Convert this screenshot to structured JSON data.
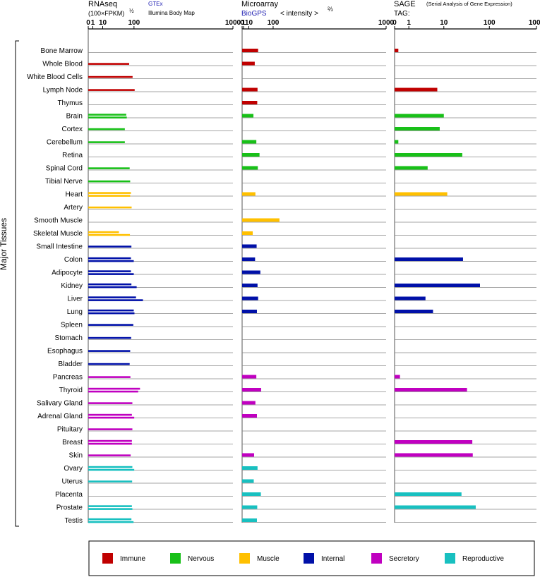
{
  "chart_data": {
    "type": "bar",
    "y_axis_label": "Major Tissues",
    "categories": [
      "Bone Marrow",
      "Whole Blood",
      "White Blood Cells",
      "Lymph Node",
      "Thymus",
      "Brain",
      "Cortex",
      "Cerebellum",
      "Retina",
      "Spinal Cord",
      "Tibial Nerve",
      "Heart",
      "Artery",
      "Smooth Muscle",
      "Skeletal Muscle",
      "Small Intestine",
      "Colon",
      "Adipocyte",
      "Kidney",
      "Liver",
      "Lung",
      "Spleen",
      "Stomach",
      "Esophagus",
      "Bladder",
      "Pancreas",
      "Thyroid",
      "Salivary Gland",
      "Adrenal Gland",
      "Pituitary",
      "Breast",
      "Skin",
      "Ovary",
      "Uterus",
      "Placenta",
      "Prostate",
      "Testis"
    ],
    "tissue_groups": [
      "Immune",
      "Immune",
      "Immune",
      "Immune",
      "Immune",
      "Nervous",
      "Nervous",
      "Nervous",
      "Nervous",
      "Nervous",
      "Nervous",
      "Muscle",
      "Muscle",
      "Muscle",
      "Muscle",
      "Internal",
      "Internal",
      "Internal",
      "Internal",
      "Internal",
      "Internal",
      "Internal",
      "Internal",
      "Internal",
      "Internal",
      "Secretory",
      "Secretory",
      "Secretory",
      "Secretory",
      "Secretory",
      "Secretory",
      "Secretory",
      "Reproductive",
      "Reproductive",
      "Reproductive",
      "Reproductive",
      "Reproductive"
    ],
    "legend": [
      {
        "name": "Immune",
        "color": "#c00000"
      },
      {
        "name": "Nervous",
        "color": "#18c018"
      },
      {
        "name": "Muscle",
        "color": "#ffc000"
      },
      {
        "name": "Internal",
        "color": "#0010a8"
      },
      {
        "name": "Secretory",
        "color": "#c000c0"
      },
      {
        "name": "Reproductive",
        "color": "#18c0c0"
      }
    ],
    "panels": [
      {
        "id": "rnaseq",
        "title": "RNAseq",
        "subtitle": "(100×FPKM)",
        "exponent": "½",
        "sources": [
          "GTEx",
          "Illumina Body Map"
        ],
        "tick_labels": [
          "0",
          "1",
          "10",
          "100",
          "1000"
        ],
        "tick_values": [
          0,
          1,
          10,
          100,
          1000
        ],
        "transform": "sqrt",
        "xlim": [
          0,
          1000
        ],
        "series_names": [
          "GTEx",
          "Illumina Body Map"
        ],
        "values": [
          [
            null,
            null
          ],
          [
            80,
            null
          ],
          [
            94,
            null
          ],
          [
            103,
            null
          ],
          [
            null,
            null
          ],
          [
            69,
            71
          ],
          [
            64,
            null
          ],
          [
            64,
            null
          ],
          [
            null,
            null
          ],
          [
            82,
            null
          ],
          [
            84,
            null
          ],
          [
            87,
            84
          ],
          [
            90,
            null
          ],
          [
            null,
            null
          ],
          [
            45,
            83
          ],
          [
            89,
            null
          ],
          [
            87,
            99
          ],
          [
            87,
            99
          ],
          [
            89,
            112
          ],
          [
            109,
            143
          ],
          [
            99,
            102
          ],
          [
            97,
            null
          ],
          [
            88,
            null
          ],
          [
            84,
            null
          ],
          [
            82,
            null
          ],
          [
            85,
            null
          ],
          [
            128,
            119
          ],
          [
            93,
            null
          ],
          [
            91,
            101
          ],
          [
            93,
            null
          ],
          [
            91,
            91
          ],
          [
            86,
            null
          ],
          [
            93,
            101
          ],
          [
            92,
            null
          ],
          [
            null,
            null
          ],
          [
            91,
            93
          ],
          [
            89,
            98
          ]
        ]
      },
      {
        "id": "microarray",
        "title": "Microarray",
        "source": "BioGPS",
        "axis_note": "< intensity >",
        "exponent": "⅔",
        "tick_labels": [
          "0",
          "1",
          "10",
          "100",
          "1000"
        ],
        "tick_values": [
          0,
          1,
          10,
          100,
          1000
        ],
        "transform": "pow23",
        "xlim": [
          0,
          1000
        ],
        "values": [
          37,
          26,
          null,
          35,
          34,
          22,
          null,
          31,
          42,
          36,
          null,
          28,
          null,
          132,
          20,
          32,
          27,
          45,
          35,
          37,
          33,
          null,
          null,
          null,
          null,
          31,
          48,
          28,
          33,
          null,
          null,
          24,
          35,
          23,
          47,
          34,
          33
        ]
      },
      {
        "id": "sage",
        "title": "SAGE",
        "subtitle": "TAG:",
        "note": "(Serial Analysis of Gene Expression)",
        "tick_labels": [
          "0",
          "1",
          "10",
          "100",
          "1000"
        ],
        "tick_values": [
          0,
          1,
          10,
          100,
          1000
        ],
        "transform": "log1p",
        "xlim": [
          0,
          1000
        ],
        "values": [
          0.2,
          null,
          null,
          7,
          null,
          10,
          8,
          0.2,
          26,
          4,
          null,
          12,
          null,
          null,
          null,
          null,
          27,
          null,
          63,
          3.5,
          5.5,
          null,
          null,
          null,
          null,
          0.3,
          33,
          null,
          null,
          null,
          43,
          44,
          null,
          null,
          25,
          51,
          null
        ]
      }
    ]
  }
}
